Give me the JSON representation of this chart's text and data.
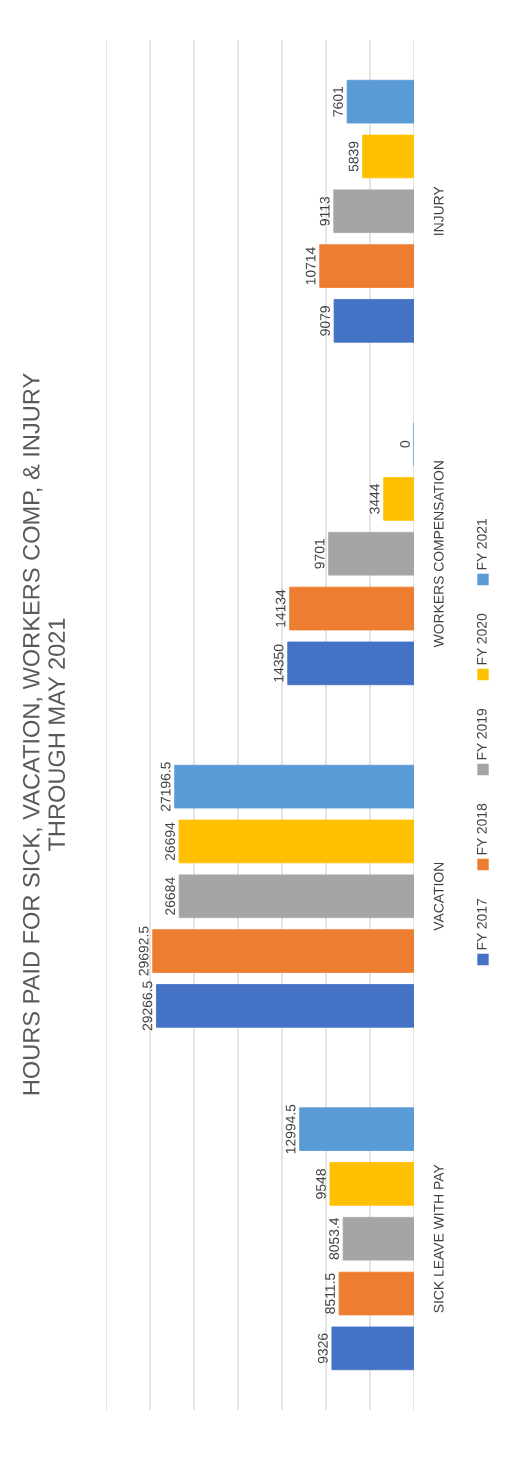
{
  "chart_data": {
    "type": "bar",
    "orientation": "horizontal",
    "title": "HOURS PAID FOR SICK, VACATION, WORKERS COMP, & INJURY\nTHROUGH MAY 2021",
    "categories": [
      "INJURY",
      "WORKERS COMPENSATION",
      "VACATION",
      "SICK LEAVE WITH PAY"
    ],
    "series": [
      {
        "name": "FY 2017",
        "color": "#4472c4",
        "values": [
          9079,
          14350,
          29266.5,
          9326
        ]
      },
      {
        "name": "FY 2018",
        "color": "#ed7d31",
        "values": [
          10714,
          14134,
          29692.5,
          8511.5
        ]
      },
      {
        "name": "FY 2019",
        "color": "#a5a5a5",
        "values": [
          9113,
          9701,
          26684,
          8053.4
        ]
      },
      {
        "name": "FY 2020",
        "color": "#ffc000",
        "values": [
          5839,
          3444,
          26694,
          9548
        ]
      },
      {
        "name": "FY 2021",
        "color": "#5b9bd5",
        "values": [
          7601,
          0,
          27196.5,
          12994.5
        ]
      }
    ],
    "xlim": [
      35000,
      0
    ],
    "xticks": [
      {
        "value": 0,
        "label": null
      },
      {
        "value": 5000,
        "label": null
      },
      {
        "value": 10000,
        "label": null
      },
      {
        "value": 15000,
        "label": null
      },
      {
        "value": 20000,
        "label": null
      },
      {
        "value": 25000,
        "label": null
      },
      {
        "value": 30000,
        "label": null
      },
      {
        "value": 35000,
        "label": null
      }
    ],
    "tick_labels": "y",
    "grid": "x",
    "legend": "right",
    "data_labels": true
  }
}
